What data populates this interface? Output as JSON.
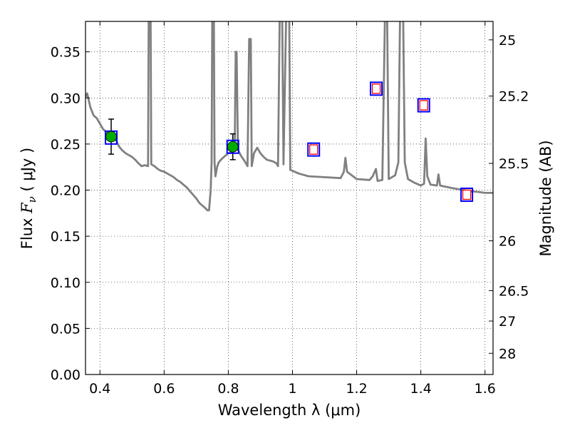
{
  "chart_data": {
    "type": "line",
    "xlabel": "Wavelength  λ (μm)",
    "ylabel": "Flux  F_ν  ( μJy )",
    "ylabel_parts": {
      "prefix": "Flux  ",
      "symbol": "F",
      "subscript": "ν",
      "suffix": "  ( μJy )"
    },
    "y2label": "Magnitude (AB)",
    "xlim": [
      0.355,
      1.625
    ],
    "ylim": [
      0.0,
      0.383
    ],
    "grid": true,
    "x_ticks": [
      0.4,
      0.6,
      0.8,
      1.0,
      1.2,
      1.4,
      1.6
    ],
    "x_tick_labels": [
      "0.4",
      "0.6",
      "0.8",
      "1",
      "1.2",
      "1.4",
      "1.6"
    ],
    "y_ticks": [
      0,
      0.05,
      0.1,
      0.15,
      0.2,
      0.25,
      0.3,
      0.35
    ],
    "y_tick_labels": [
      "0.00",
      "0.05",
      "0.10",
      "0.15",
      "0.20",
      "0.25",
      "0.30",
      "0.35"
    ],
    "y2_ticks": [
      {
        "label": "25",
        "flux": 0.363
      },
      {
        "label": "25.2",
        "flux": 0.302
      },
      {
        "label": "25.5",
        "flux": 0.229
      },
      {
        "label": "26",
        "flux": 0.145
      },
      {
        "label": "26.5",
        "flux": 0.091
      },
      {
        "label": "27",
        "flux": 0.058
      },
      {
        "label": "28",
        "flux": 0.023
      }
    ],
    "series": [
      {
        "kind": "model-spectrum",
        "color": "#808080",
        "points": [
          [
            0.355,
            0.301
          ],
          [
            0.36,
            0.305
          ],
          [
            0.37,
            0.29
          ],
          [
            0.38,
            0.281
          ],
          [
            0.39,
            0.278
          ],
          [
            0.4,
            0.272
          ],
          [
            0.41,
            0.266
          ],
          [
            0.42,
            0.263
          ],
          [
            0.43,
            0.258
          ],
          [
            0.44,
            0.257
          ],
          [
            0.45,
            0.254
          ],
          [
            0.46,
            0.247
          ],
          [
            0.47,
            0.243
          ],
          [
            0.48,
            0.24
          ],
          [
            0.49,
            0.238
          ],
          [
            0.5,
            0.236
          ],
          [
            0.51,
            0.233
          ],
          [
            0.52,
            0.229
          ],
          [
            0.53,
            0.226
          ],
          [
            0.54,
            0.227
          ],
          [
            0.55,
            0.226
          ],
          [
            0.552,
            0.385
          ],
          [
            0.558,
            0.385
          ],
          [
            0.56,
            0.228
          ],
          [
            0.57,
            0.226
          ],
          [
            0.58,
            0.223
          ],
          [
            0.59,
            0.221
          ],
          [
            0.6,
            0.22
          ],
          [
            0.61,
            0.218
          ],
          [
            0.62,
            0.216
          ],
          [
            0.63,
            0.214
          ],
          [
            0.64,
            0.211
          ],
          [
            0.65,
            0.209
          ],
          [
            0.66,
            0.206
          ],
          [
            0.67,
            0.203
          ],
          [
            0.68,
            0.199
          ],
          [
            0.69,
            0.195
          ],
          [
            0.7,
            0.191
          ],
          [
            0.71,
            0.186
          ],
          [
            0.72,
            0.183
          ],
          [
            0.73,
            0.18
          ],
          [
            0.735,
            0.178
          ],
          [
            0.74,
            0.178
          ],
          [
            0.745,
            0.2
          ],
          [
            0.748,
            0.23
          ],
          [
            0.75,
            0.385
          ],
          [
            0.755,
            0.385
          ],
          [
            0.757,
            0.23
          ],
          [
            0.76,
            0.215
          ],
          [
            0.765,
            0.225
          ],
          [
            0.77,
            0.23
          ],
          [
            0.78,
            0.234
          ],
          [
            0.79,
            0.237
          ],
          [
            0.8,
            0.24
          ],
          [
            0.81,
            0.241
          ],
          [
            0.82,
            0.243
          ],
          [
            0.823,
            0.35
          ],
          [
            0.826,
            0.35
          ],
          [
            0.83,
            0.244
          ],
          [
            0.84,
            0.237
          ],
          [
            0.85,
            0.232
          ],
          [
            0.86,
            0.226
          ],
          [
            0.865,
            0.364
          ],
          [
            0.87,
            0.364
          ],
          [
            0.873,
            0.226
          ],
          [
            0.88,
            0.24
          ],
          [
            0.89,
            0.246
          ],
          [
            0.9,
            0.24
          ],
          [
            0.91,
            0.236
          ],
          [
            0.92,
            0.233
          ],
          [
            0.93,
            0.232
          ],
          [
            0.94,
            0.231
          ],
          [
            0.95,
            0.229
          ],
          [
            0.955,
            0.226
          ],
          [
            0.96,
            0.385
          ],
          [
            0.968,
            0.385
          ],
          [
            0.972,
            0.228
          ],
          [
            0.98,
            0.385
          ],
          [
            0.99,
            0.385
          ],
          [
            0.993,
            0.222
          ],
          [
            1.0,
            0.221
          ],
          [
            1.02,
            0.218
          ],
          [
            1.05,
            0.215
          ],
          [
            1.1,
            0.214
          ],
          [
            1.15,
            0.213
          ],
          [
            1.16,
            0.22
          ],
          [
            1.165,
            0.235
          ],
          [
            1.17,
            0.22
          ],
          [
            1.2,
            0.212
          ],
          [
            1.24,
            0.211
          ],
          [
            1.25,
            0.215
          ],
          [
            1.26,
            0.223
          ],
          [
            1.265,
            0.21
          ],
          [
            1.28,
            0.211
          ],
          [
            1.288,
            0.385
          ],
          [
            1.295,
            0.385
          ],
          [
            1.3,
            0.212
          ],
          [
            1.32,
            0.216
          ],
          [
            1.33,
            0.23
          ],
          [
            1.335,
            0.385
          ],
          [
            1.345,
            0.385
          ],
          [
            1.35,
            0.23
          ],
          [
            1.36,
            0.212
          ],
          [
            1.38,
            0.208
          ],
          [
            1.4,
            0.205
          ],
          [
            1.41,
            0.207
          ],
          [
            1.415,
            0.256
          ],
          [
            1.42,
            0.215
          ],
          [
            1.43,
            0.206
          ],
          [
            1.45,
            0.205
          ],
          [
            1.455,
            0.217
          ],
          [
            1.46,
            0.205
          ],
          [
            1.5,
            0.202
          ],
          [
            1.55,
            0.199
          ],
          [
            1.58,
            0.198
          ],
          [
            1.6,
            0.197
          ],
          [
            1.625,
            0.197
          ]
        ]
      },
      {
        "kind": "observed-photometry",
        "fill": "#00aa00",
        "points": [
          {
            "x": 0.435,
            "y": 0.258,
            "yerr": 0.019
          },
          {
            "x": 0.814,
            "y": 0.247,
            "yerr": 0.014
          }
        ]
      },
      {
        "kind": "model-photometry",
        "stroke": "#0000ff",
        "points": [
          {
            "x": 0.435,
            "y": 0.257
          },
          {
            "x": 0.814,
            "y": 0.247
          },
          {
            "x": 1.066,
            "y": 0.244
          },
          {
            "x": 1.261,
            "y": 0.31
          },
          {
            "x": 1.409,
            "y": 0.292
          },
          {
            "x": 1.543,
            "y": 0.195
          }
        ]
      },
      {
        "kind": "predicted-photometry",
        "stroke": "#ff0000",
        "points": [
          {
            "x": 1.066,
            "y": 0.244
          },
          {
            "x": 1.261,
            "y": 0.31
          },
          {
            "x": 1.409,
            "y": 0.292
          },
          {
            "x": 1.543,
            "y": 0.195
          }
        ]
      }
    ]
  }
}
